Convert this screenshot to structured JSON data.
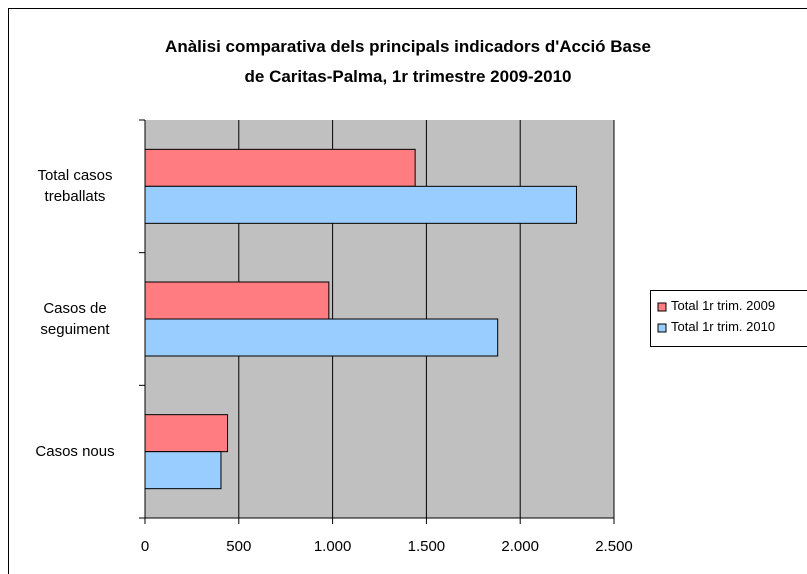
{
  "chart_data": {
    "type": "hbar",
    "title": "Anàlisi comparativa dels principals indicadors d'Acció Base\nde Caritas-Palma, 1r trimestre 2009-2010",
    "categories": [
      "Casos nous",
      "Casos de\nseguiment",
      "Total casos\ntreballats"
    ],
    "series": [
      {
        "name": "Total 1r trim. 2009",
        "color": "#FF7C80",
        "values": [
          440,
          980,
          1440
        ]
      },
      {
        "name": "Total 1r trim. 2010",
        "color": "#99CCFF",
        "values": [
          405,
          1880,
          2300
        ]
      }
    ],
    "xlim": [
      0,
      2500
    ],
    "xticks": [
      0,
      500,
      {
        "value": 1000,
        "label": "1.000"
      },
      {
        "value": 1500,
        "label": "1.500"
      },
      {
        "value": 2000,
        "label": "2.000"
      },
      {
        "value": 2500,
        "label": "2.500"
      }
    ],
    "grid": true,
    "legend": "right",
    "plot_background": "#C0C0C0"
  }
}
